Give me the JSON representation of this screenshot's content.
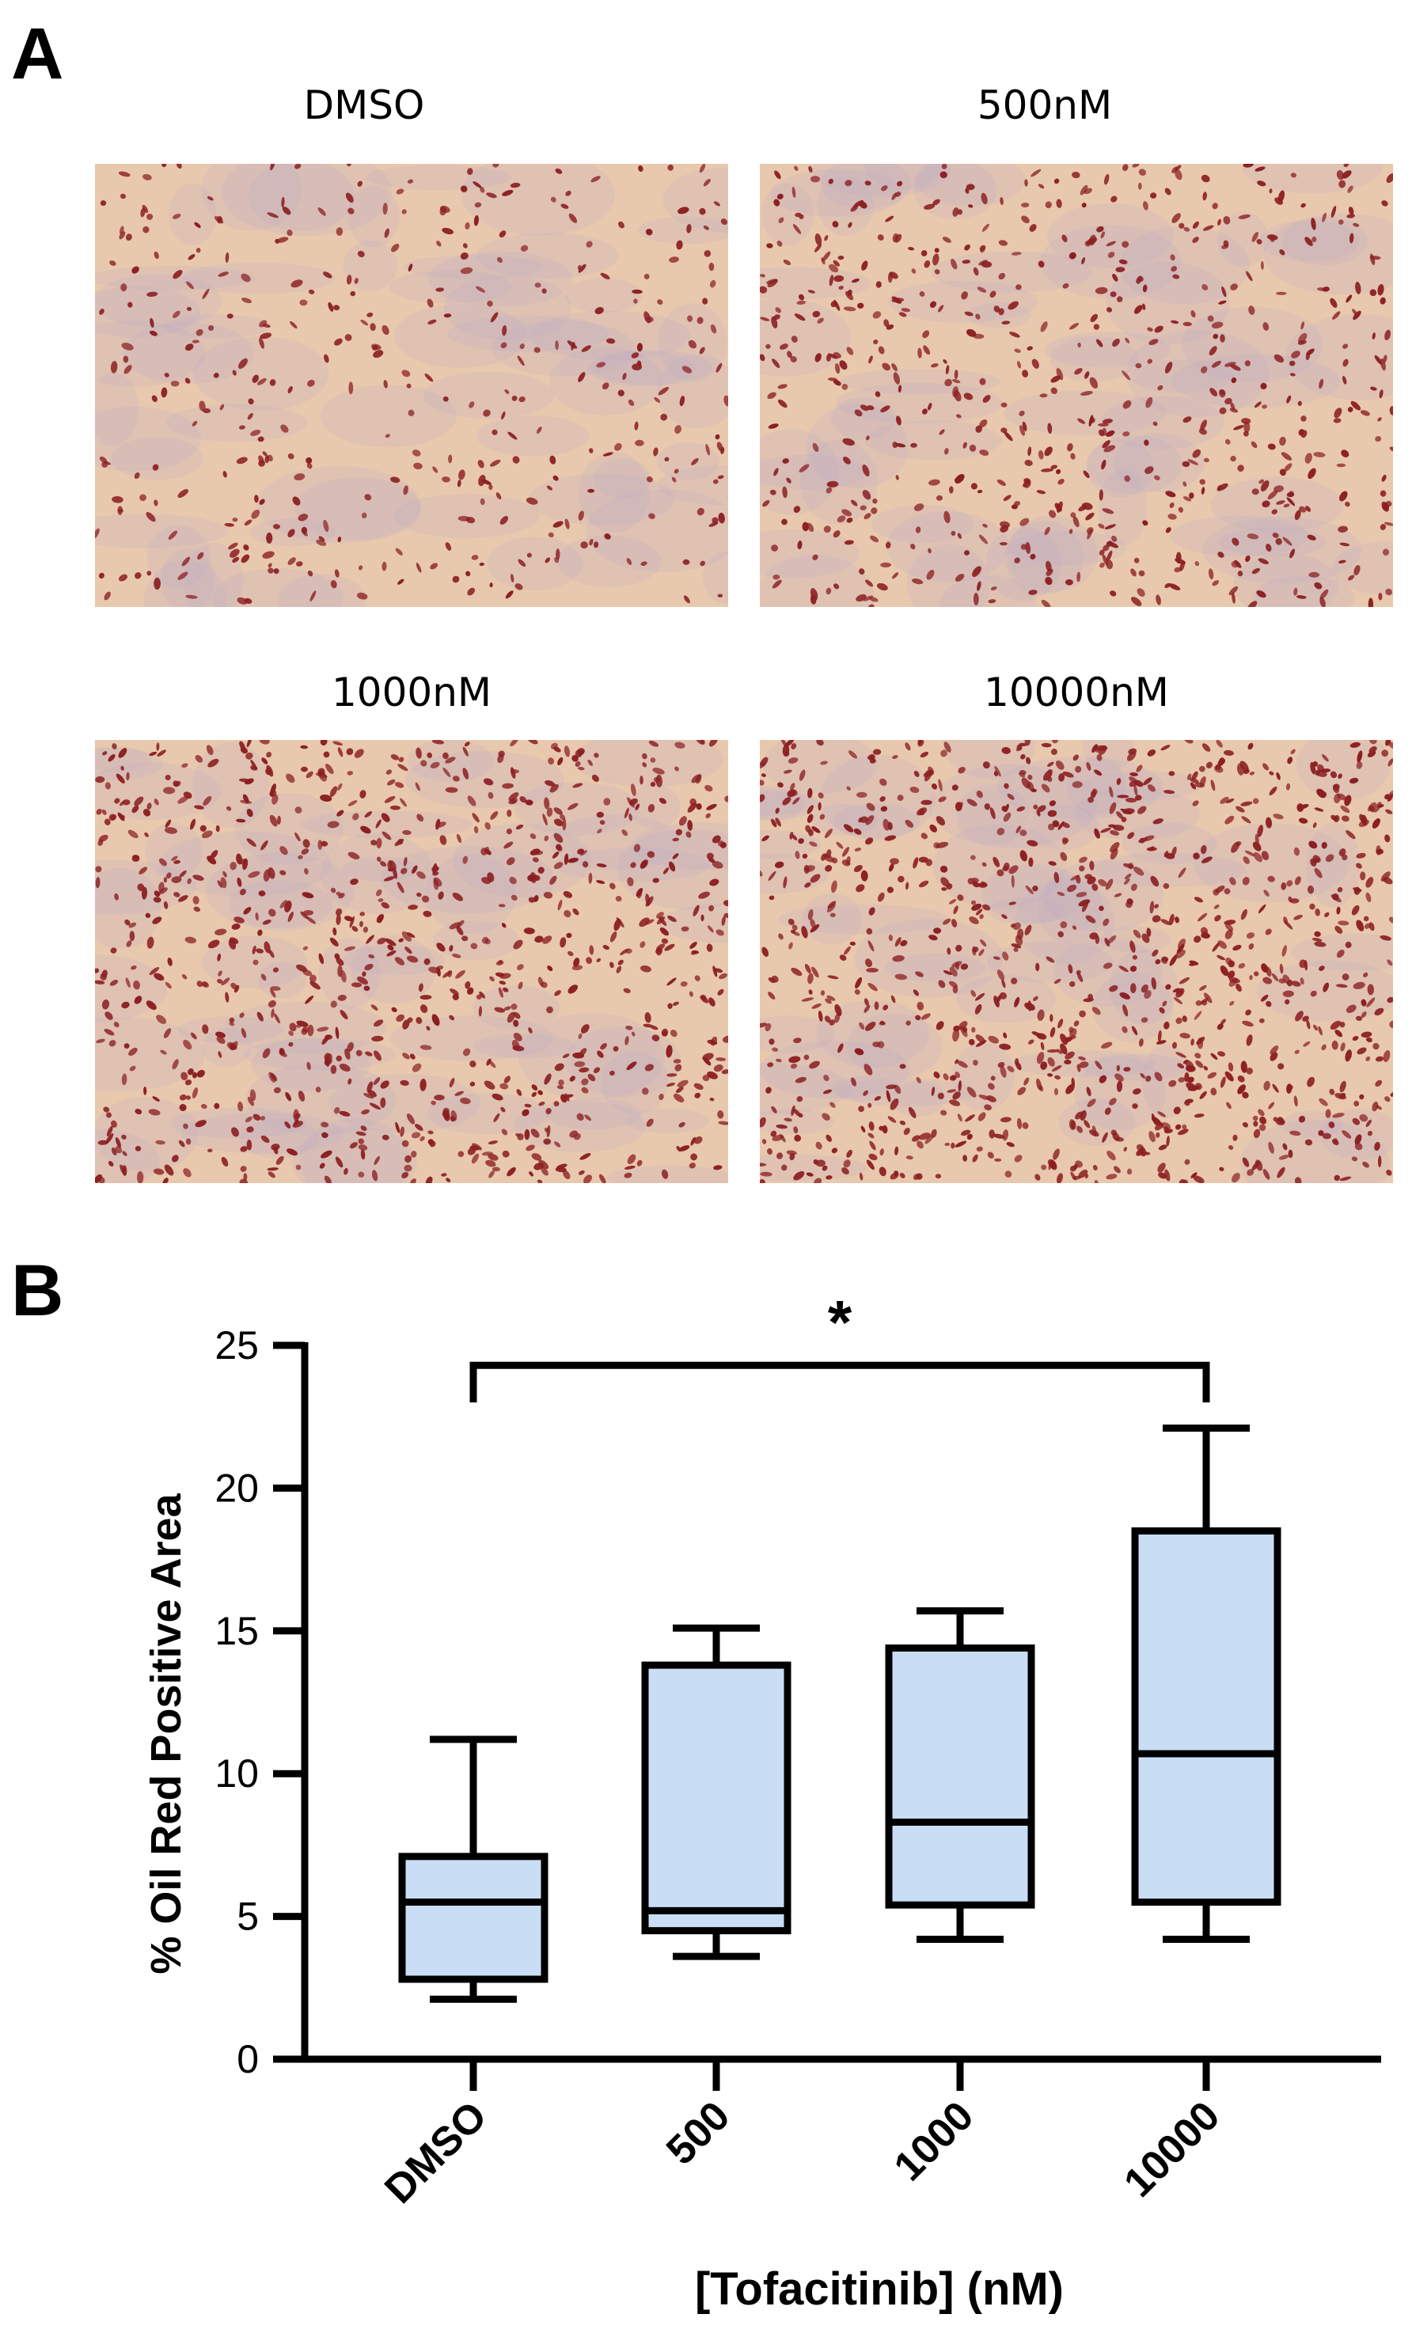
{
  "panel_a": {
    "letter": "A",
    "images": [
      {
        "title": "DMSO",
        "density": 0.35
      },
      {
        "title": "500nM",
        "density": 0.6
      },
      {
        "title": "1000nM",
        "density": 0.85
      },
      {
        "title": "10000nM",
        "density": 1.0
      }
    ],
    "colors": {
      "background": "#e8c9ae",
      "stain": "#8c1f22",
      "haze": "#b9a6c9"
    }
  },
  "panel_b": {
    "letter": "B",
    "significance": "*"
  },
  "chart_data": {
    "type": "box",
    "categories": [
      "DMSO",
      "500",
      "1000",
      "10000"
    ],
    "boxes": [
      {
        "category": "DMSO",
        "min": 2.1,
        "q1": 2.8,
        "median": 5.5,
        "q3": 7.1,
        "max": 11.2
      },
      {
        "category": "500",
        "min": 3.6,
        "q1": 4.5,
        "median": 5.2,
        "q3": 13.8,
        "max": 15.1
      },
      {
        "category": "1000",
        "min": 4.2,
        "q1": 5.4,
        "median": 8.3,
        "q3": 14.4,
        "max": 15.7
      },
      {
        "category": "10000",
        "min": 4.2,
        "q1": 5.5,
        "median": 10.7,
        "q3": 18.5,
        "max": 22.1
      }
    ],
    "xlabel": "[Tofacitinib] (nM)",
    "ylabel": "% Oil Red Positive Area",
    "ylim": [
      0,
      25
    ],
    "yticks": [
      "0",
      "5",
      "10",
      "15",
      "20",
      "25"
    ],
    "grid": false,
    "annotation": {
      "text": "*",
      "from": "DMSO",
      "to": "10000"
    },
    "colors": {
      "box_fill": "#c9def5",
      "stroke": "#000000"
    }
  }
}
